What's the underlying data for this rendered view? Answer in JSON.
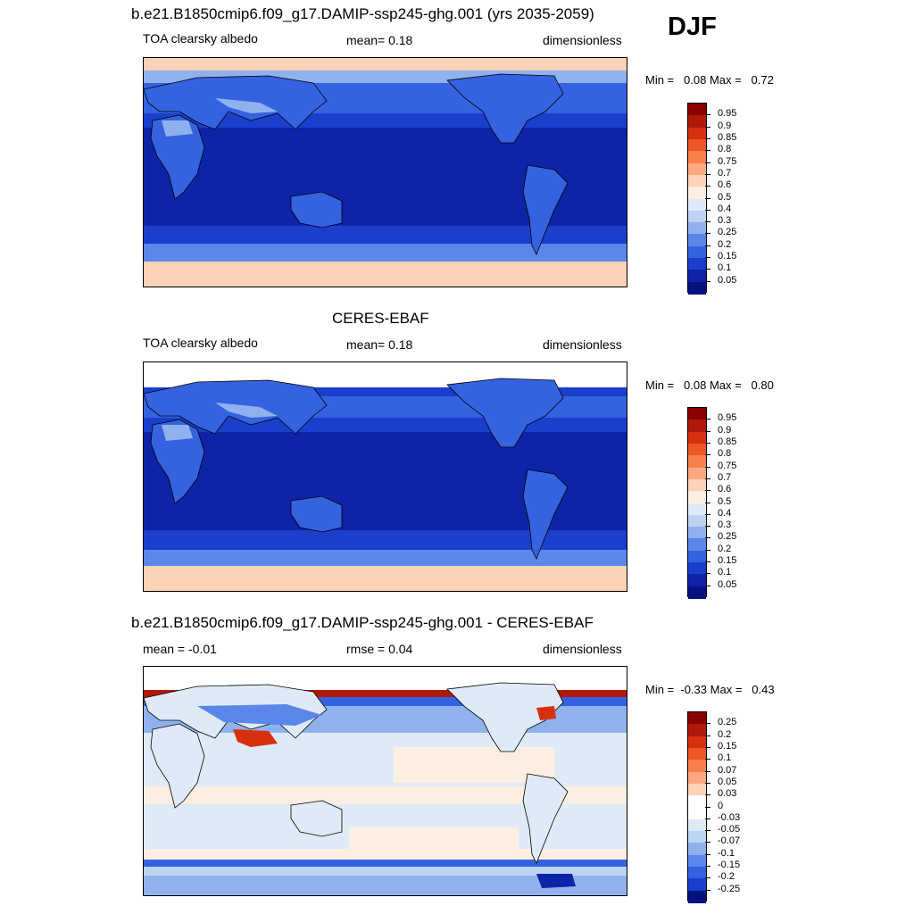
{
  "season": "DJF",
  "panels": [
    {
      "title": "b.e21.B1850cmip6.f09_g17.DAMIP-ssp245-ghg.001 (yrs 2035-2059)",
      "left_label": "TOA clearsky albedo",
      "center_label": "mean=   0.18",
      "right_label": "dimensionless",
      "min_label": "Min =",
      "min_value": "0.08",
      "max_label": "Max =",
      "max_value": "0.72",
      "colorbar_labels": [
        "0.95",
        "0.9",
        "0.85",
        "0.8",
        "0.75",
        "0.7",
        "0.6",
        "0.5",
        "0.4",
        "0.3",
        "0.25",
        "0.2",
        "0.15",
        "0.1",
        "0.05"
      ]
    },
    {
      "title": "CERES-EBAF",
      "left_label": "TOA clearsky albedo",
      "center_label": "mean=   0.18",
      "right_label": "dimensionless",
      "min_label": "Min =",
      "min_value": "0.08",
      "max_label": "Max =",
      "max_value": "0.80",
      "colorbar_labels": [
        "0.95",
        "0.9",
        "0.85",
        "0.8",
        "0.75",
        "0.7",
        "0.6",
        "0.5",
        "0.4",
        "0.3",
        "0.25",
        "0.2",
        "0.15",
        "0.1",
        "0.05"
      ]
    },
    {
      "title": "b.e21.B1850cmip6.f09_g17.DAMIP-ssp245-ghg.001 - CERES-EBAF",
      "left_label": "mean =  -0.01",
      "center_label": "rmse =   0.04",
      "right_label": "dimensionless",
      "min_label": "Min =",
      "min_value": "-0.33",
      "max_label": "Max =",
      "max_value": "0.43",
      "colorbar_labels": [
        "0.25",
        "0.2",
        "0.15",
        "0.1",
        "0.07",
        "0.05",
        "0.03",
        "0",
        "-0.03",
        "-0.05",
        "-0.07",
        "-0.1",
        "-0.15",
        "-0.2",
        "-0.25"
      ]
    }
  ],
  "colors": {
    "seq": [
      "#8b0000",
      "#b0180a",
      "#d8300f",
      "#ee5628",
      "#f7804d",
      "#fba882",
      "#fdd2b5",
      "#fdeee2",
      "#deebf7",
      "#bcd3f2",
      "#8fb2ee",
      "#5b86ea",
      "#3462e0",
      "#1a3fcc",
      "#0d24a8",
      "#041280"
    ],
    "diff": [
      "#8b0000",
      "#b0180a",
      "#d8300f",
      "#ee5628",
      "#f7804d",
      "#fba882",
      "#fdd2b5",
      "#ffffff",
      "#ffffff",
      "#deebf7",
      "#bcd3f2",
      "#8fb2ee",
      "#5b86ea",
      "#3462e0",
      "#1a3fcc",
      "#041280"
    ]
  },
  "chart_data": [
    {
      "type": "heatmap",
      "title": "b.e21.B1850cmip6.f09_g17.DAMIP-ssp245-ghg.001 (yrs 2035-2059)",
      "variable": "TOA clearsky albedo",
      "units": "dimensionless",
      "mean": 0.18,
      "min": 0.08,
      "max": 0.72,
      "levels": [
        0.05,
        0.1,
        0.15,
        0.2,
        0.25,
        0.3,
        0.4,
        0.5,
        0.6,
        0.7,
        0.75,
        0.8,
        0.85,
        0.9,
        0.95
      ]
    },
    {
      "type": "heatmap",
      "title": "CERES-EBAF",
      "variable": "TOA clearsky albedo",
      "units": "dimensionless",
      "mean": 0.18,
      "min": 0.08,
      "max": 0.8,
      "levels": [
        0.05,
        0.1,
        0.15,
        0.2,
        0.25,
        0.3,
        0.4,
        0.5,
        0.6,
        0.7,
        0.75,
        0.8,
        0.85,
        0.9,
        0.95
      ]
    },
    {
      "type": "heatmap",
      "title": "b.e21.B1850cmip6.f09_g17.DAMIP-ssp245-ghg.001 - CERES-EBAF",
      "units": "dimensionless",
      "mean": -0.01,
      "rmse": 0.04,
      "min": -0.33,
      "max": 0.43,
      "levels": [
        -0.25,
        -0.2,
        -0.15,
        -0.1,
        -0.07,
        -0.05,
        -0.03,
        0,
        0.03,
        0.05,
        0.07,
        0.1,
        0.15,
        0.2,
        0.25
      ]
    }
  ]
}
